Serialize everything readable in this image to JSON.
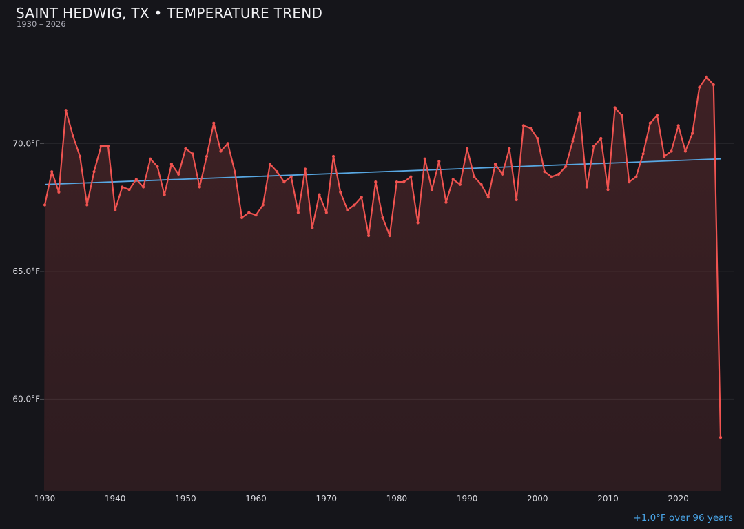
{
  "header": {
    "title": "SAINT HEDWIG, TX • TEMPERATURE TREND",
    "subtitle": "1930 – 2026"
  },
  "footer": {
    "trend_label": "+1.0°F over 96 years"
  },
  "colors": {
    "background": "#15151a",
    "series_line": "#ef5350",
    "area_fill_top": "rgba(239,83,80,0.19)",
    "area_fill_bottom": "rgba(239,83,80,0.11)",
    "trend_line": "#58a7e2",
    "footer_text": "#49a4e6",
    "grid_line": "rgba(255,255,255,0.08)",
    "tick_text": "#d8d8de",
    "title_text": "#f2f2f5",
    "subtitle_text": "#a9a9b3"
  },
  "chart_data": {
    "type": "line",
    "title": "SAINT HEDWIG, TX • TEMPERATURE TREND",
    "subtitle": "1930 – 2026",
    "xlabel": "",
    "ylabel": "",
    "grid": true,
    "legend_position": "none",
    "marker": "circle",
    "area_fill": true,
    "xlim": [
      1930,
      2026
    ],
    "ylim": [
      56.4,
      74.0
    ],
    "x_ticks": [
      1930,
      1940,
      1950,
      1960,
      1970,
      1980,
      1990,
      2000,
      2010,
      2020
    ],
    "y_ticks": [
      {
        "value": 70,
        "label": "70.0°F"
      },
      {
        "value": 65,
        "label": "65.0°F"
      },
      {
        "value": 60,
        "label": "60.0°F"
      }
    ],
    "x": [
      1930,
      1931,
      1932,
      1933,
      1934,
      1935,
      1936,
      1937,
      1938,
      1939,
      1940,
      1941,
      1942,
      1943,
      1944,
      1945,
      1946,
      1947,
      1948,
      1949,
      1950,
      1951,
      1952,
      1953,
      1954,
      1955,
      1956,
      1957,
      1958,
      1959,
      1960,
      1961,
      1962,
      1963,
      1964,
      1965,
      1966,
      1967,
      1968,
      1969,
      1970,
      1971,
      1972,
      1973,
      1974,
      1975,
      1976,
      1977,
      1978,
      1979,
      1980,
      1981,
      1982,
      1983,
      1984,
      1985,
      1986,
      1987,
      1988,
      1989,
      1990,
      1991,
      1992,
      1993,
      1994,
      1995,
      1996,
      1997,
      1998,
      1999,
      2000,
      2001,
      2002,
      2003,
      2004,
      2005,
      2006,
      2007,
      2008,
      2009,
      2010,
      2011,
      2012,
      2013,
      2014,
      2015,
      2016,
      2017,
      2018,
      2019,
      2020,
      2021,
      2022,
      2023,
      2024,
      2025,
      2026
    ],
    "series": [
      {
        "name": "annual-mean-temperature",
        "unit": "°F",
        "color": "#ef5350",
        "values": [
          67.6,
          68.9,
          68.1,
          71.3,
          70.3,
          69.5,
          67.6,
          68.9,
          69.9,
          69.9,
          67.4,
          68.3,
          68.2,
          68.6,
          68.3,
          69.4,
          69.1,
          68.0,
          69.2,
          68.8,
          69.8,
          69.6,
          68.3,
          69.5,
          70.8,
          69.7,
          70.0,
          68.9,
          67.1,
          67.3,
          67.2,
          67.6,
          69.2,
          68.9,
          68.5,
          68.7,
          67.3,
          69.0,
          66.7,
          68.0,
          67.3,
          69.5,
          68.1,
          67.4,
          67.6,
          67.9,
          66.4,
          68.5,
          67.1,
          66.4,
          68.5,
          68.5,
          68.7,
          66.9,
          69.4,
          68.2,
          69.3,
          67.7,
          68.6,
          68.4,
          69.8,
          68.7,
          68.4,
          67.9,
          69.2,
          68.8,
          69.8,
          67.8,
          70.7,
          70.6,
          70.2,
          68.9,
          68.7,
          68.8,
          69.1,
          70.1,
          71.2,
          68.3,
          69.9,
          70.2,
          68.2,
          71.4,
          71.1,
          68.5,
          68.7,
          69.6,
          70.8,
          71.1,
          69.5,
          69.7,
          70.7,
          69.7,
          70.4,
          72.2,
          72.6,
          72.3,
          58.5
        ]
      }
    ],
    "trend": {
      "label": "+1.0°F over 96 years",
      "color": "#58a7e2",
      "start_year": 1930,
      "start_value": 68.4,
      "end_year": 2026,
      "end_value": 69.4
    }
  }
}
